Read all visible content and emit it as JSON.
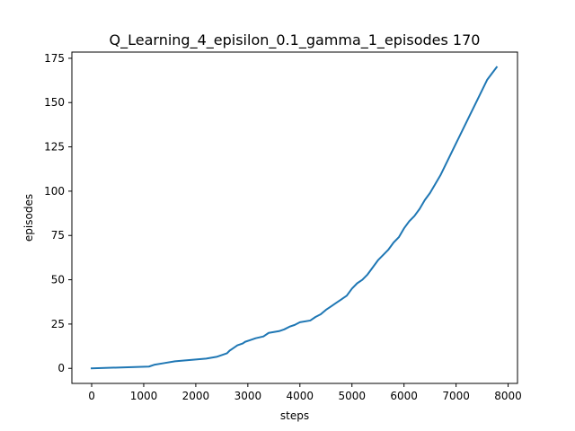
{
  "chart_data": {
    "type": "line",
    "title": "Q_Learning_4_episilon_0.1_gamma_1_episodes 170",
    "xlabel": "steps",
    "ylabel": "episodes",
    "xlim": [
      -380,
      8180
    ],
    "ylim": [
      -8.5,
      178.5
    ],
    "xticks": [
      0,
      1000,
      2000,
      3000,
      4000,
      5000,
      6000,
      7000,
      8000
    ],
    "yticks": [
      0,
      25,
      50,
      75,
      100,
      125,
      150,
      175
    ],
    "grid": false,
    "line_color": "#1f77b4",
    "series": [
      {
        "x": [
          0,
          1100,
          1200,
          1400,
          1600,
          1800,
          2000,
          2200,
          2400,
          2500,
          2600,
          2650,
          2700,
          2800,
          2900,
          2950,
          3050,
          3150,
          3300,
          3400,
          3500,
          3600,
          3700,
          3800,
          3900,
          4000,
          4200,
          4300,
          4400,
          4500,
          4600,
          4650,
          4700,
          4800,
          4900,
          5000,
          5100,
          5200,
          5300,
          5400,
          5500,
          5600,
          5700,
          5800,
          5900,
          6000,
          6100,
          6200,
          6300,
          6400,
          6500,
          6600,
          6700,
          6800,
          7000,
          7200,
          7400,
          7600,
          7780
        ],
        "y": [
          0,
          1,
          2,
          3,
          4,
          4.5,
          5,
          5.5,
          6.5,
          7.5,
          8.5,
          10,
          11,
          13,
          14,
          15,
          16,
          17,
          18,
          20,
          20.5,
          21,
          22,
          23.5,
          24.5,
          26,
          27,
          29,
          30.5,
          33,
          35,
          36,
          37,
          39,
          41,
          45,
          48,
          50,
          53,
          57,
          61,
          64,
          67,
          71,
          74,
          79,
          83,
          86,
          90,
          95,
          99,
          104,
          109,
          115,
          127,
          139,
          151,
          163,
          170
        ]
      }
    ]
  }
}
